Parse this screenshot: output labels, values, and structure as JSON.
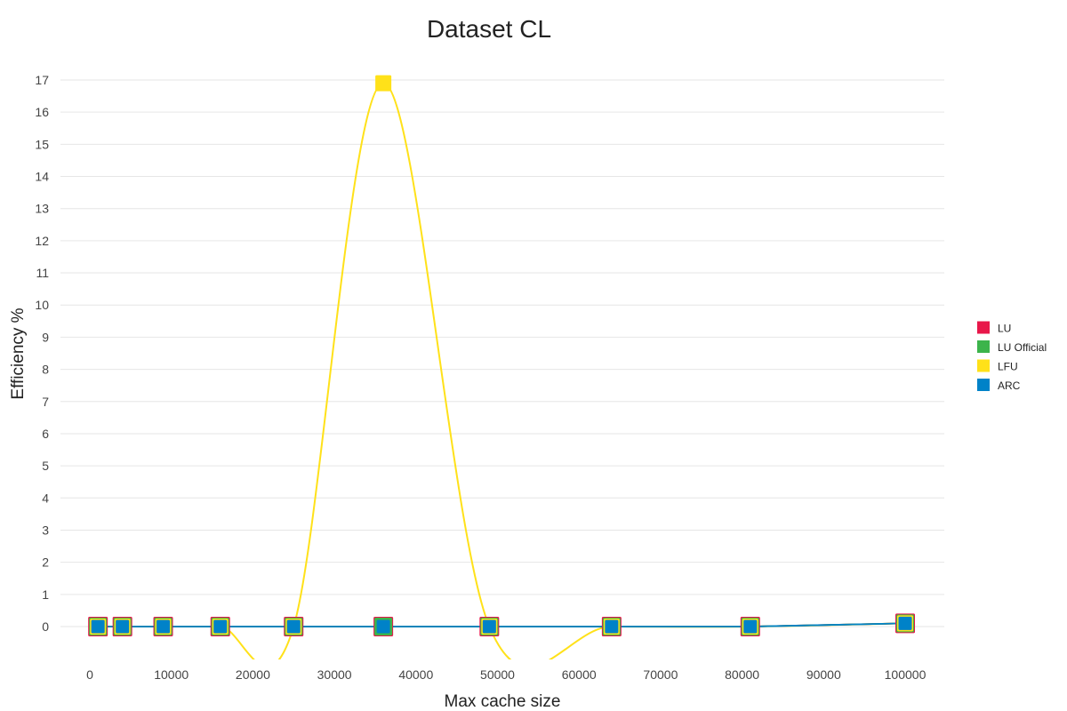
{
  "chart_data": {
    "type": "line",
    "title": "Dataset CL",
    "xlabel": "Max cache size",
    "ylabel": "Efficiency %",
    "xlim": [
      0,
      100000
    ],
    "ylim": [
      0,
      17
    ],
    "x_ticks": [
      0,
      10000,
      20000,
      30000,
      40000,
      50000,
      60000,
      70000,
      80000,
      90000,
      100000
    ],
    "y_ticks": [
      0,
      1,
      2,
      3,
      4,
      5,
      6,
      7,
      8,
      9,
      10,
      11,
      12,
      13,
      14,
      15,
      16,
      17
    ],
    "grid": true,
    "legend_position": "right",
    "x": [
      1000,
      4000,
      9000,
      16000,
      25000,
      36000,
      49000,
      64000,
      81000,
      100000
    ],
    "series": [
      {
        "name": "LU",
        "color": "#e8174a",
        "smooth": false,
        "values": [
          0,
          0,
          0,
          0,
          0,
          0,
          0,
          0,
          0,
          0.1
        ]
      },
      {
        "name": "LU Official",
        "color": "#3cb44b",
        "smooth": false,
        "values": [
          0,
          0,
          0,
          0,
          0,
          0,
          0,
          0,
          0,
          0.1
        ]
      },
      {
        "name": "LFU",
        "color": "#ffe119",
        "smooth": true,
        "values": [
          0,
          0,
          0,
          0,
          0,
          16.9,
          0,
          0,
          0,
          0.1
        ]
      },
      {
        "name": "ARC",
        "color": "#0082c8",
        "smooth": false,
        "values": [
          0,
          0,
          0,
          0,
          0,
          0,
          0,
          0,
          0,
          0.1
        ]
      }
    ]
  }
}
